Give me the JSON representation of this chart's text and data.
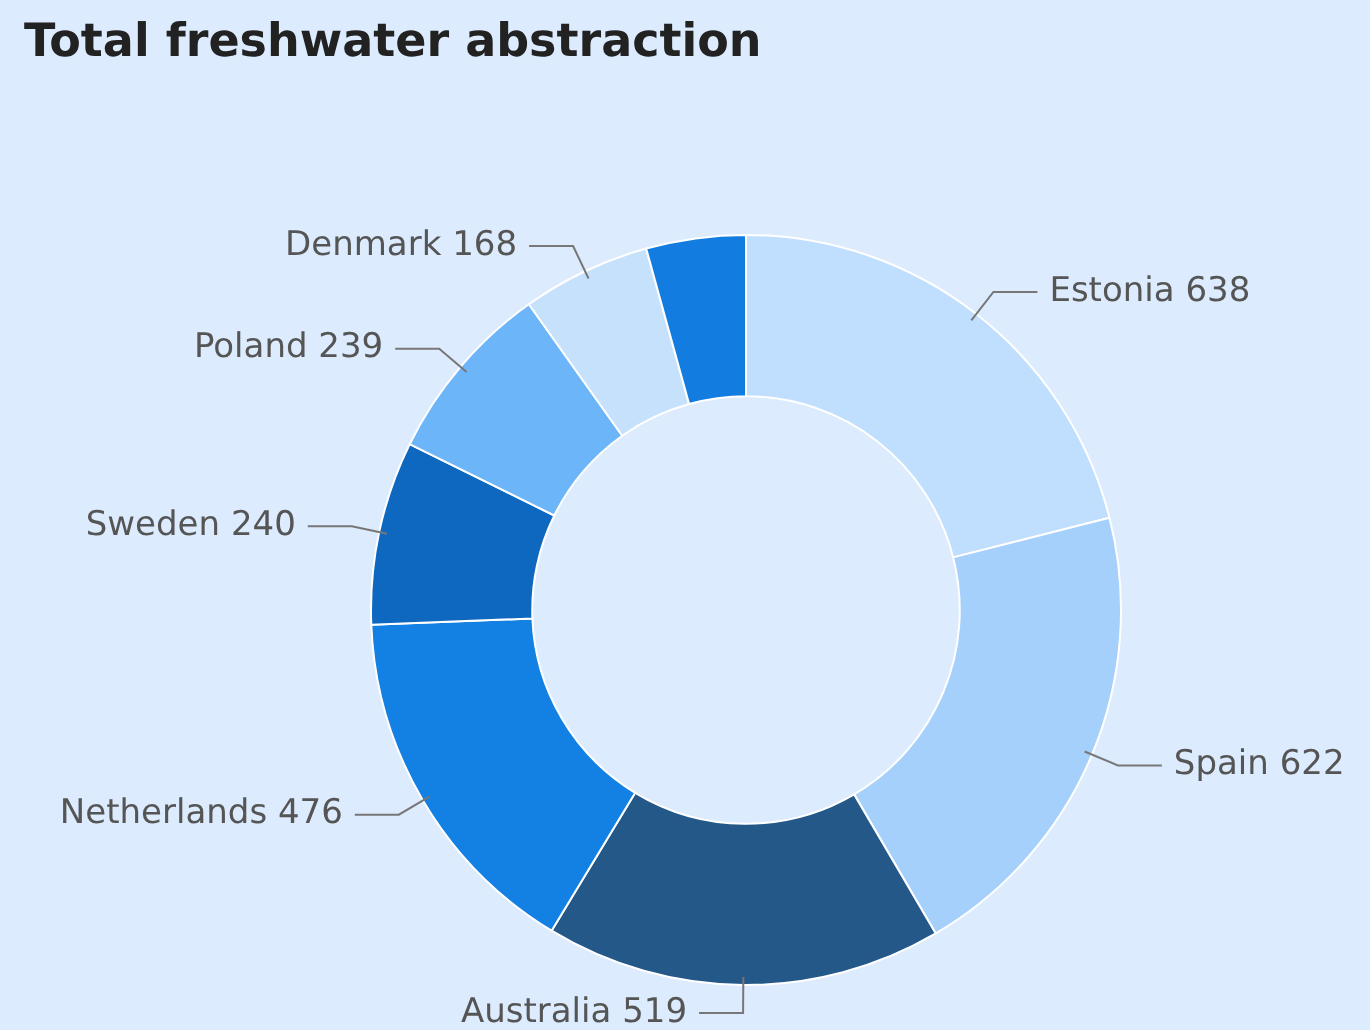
{
  "chart_data": {
    "type": "donut",
    "title": "Total freshwater abstraction",
    "categories": [
      "Estonia",
      "Spain",
      "Australia",
      "Netherlands",
      "Sweden",
      "Poland",
      "Denmark",
      null
    ],
    "values": [
      638,
      622,
      519,
      476,
      240,
      239,
      168,
      130
    ],
    "value_labels": [
      "638",
      "622",
      "519",
      "476",
      "240",
      "239",
      "168",
      null
    ],
    "colors": [
      "#c0defd",
      "#a5d0fb",
      "#235888",
      "#1380e3",
      "#0f68c0",
      "#6cb5f9",
      "#c5e1fc",
      "#127ce0"
    ]
  }
}
